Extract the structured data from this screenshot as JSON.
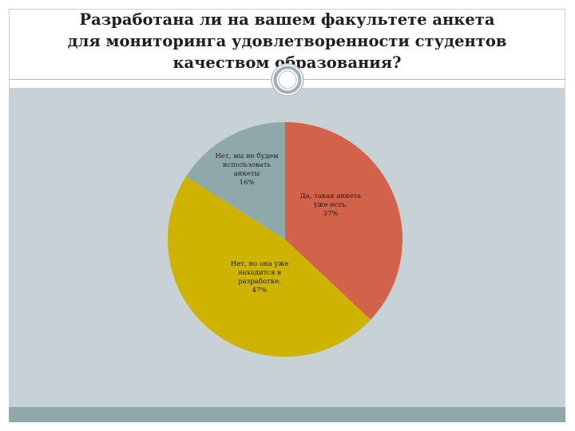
{
  "slide": {
    "title": "Разработана ли на вашем факультете анкета для мониторинга удовлетворенности студентов качеством образования?"
  },
  "colors": {
    "content_bg": "#c7d1d6",
    "footer_bar": "#8fa9ab"
  },
  "chart_data": {
    "type": "pie",
    "title": "",
    "slices": [
      {
        "label_lines": [
          "Да, такая анкета",
          "уже есть.",
          "37%"
        ],
        "value": 37,
        "color": "#d2634a"
      },
      {
        "label_lines": [
          "Нет, но она уже",
          "находится в",
          "разработке.",
          "47%"
        ],
        "value": 47,
        "color": "#ceb300"
      },
      {
        "label_lines": [
          "Нет, мы не будем",
          "использовать",
          "анкеты",
          "16%"
        ],
        "value": 16,
        "color": "#8fa9ab"
      }
    ],
    "start_angle_deg": 0,
    "direction": "clockwise"
  }
}
